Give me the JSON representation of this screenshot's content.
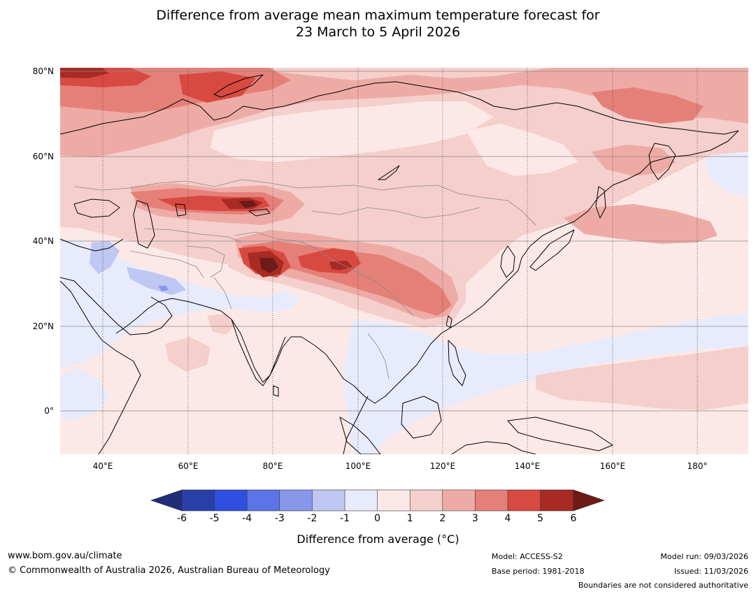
{
  "title": {
    "line1": "Difference from average mean maximum temperature forecast for",
    "line2": "23 March to 5 April 2026"
  },
  "map": {
    "region": "Asia",
    "lat_labels": [
      "80°N",
      "60°N",
      "40°N",
      "20°N",
      "0°"
    ],
    "lon_labels": [
      "40°E",
      "60°E",
      "80°E",
      "100°E",
      "120°E",
      "140°E",
      "160°E",
      "180°"
    ]
  },
  "colorbar": {
    "ticks": [
      "-6",
      "-5",
      "-4",
      "-3",
      "-2",
      "-1",
      "0",
      "1",
      "2",
      "3",
      "4",
      "5",
      "6"
    ],
    "colors": {
      "below_min": "#1f2d7a",
      "c1": "#283fa8",
      "c2": "#2f4fe0",
      "c3": "#5b74e6",
      "c4": "#8797ea",
      "c5": "#bfc7f3",
      "c6": "#e8ebfb",
      "c7": "#fce9e7",
      "c8": "#f5cfcb",
      "c9": "#eeaba6",
      "c10": "#e58079",
      "c11": "#d84a41",
      "c12": "#a82a24",
      "above_max": "#6e1a17"
    },
    "label": "Difference from average (°C)"
  },
  "footer": {
    "website": "www.bom.gov.au/climate",
    "copyright": "© Commonwealth of Australia 2026, Australian Bureau of Meteorology",
    "model": "Model: ACCESS-S2",
    "base_period": "Base period: 1981-2018",
    "model_run": "Model run: 09/03/2026",
    "issued": "Issued: 11/03/2026",
    "disclaimer": "Boundaries are not considered authoritative"
  }
}
